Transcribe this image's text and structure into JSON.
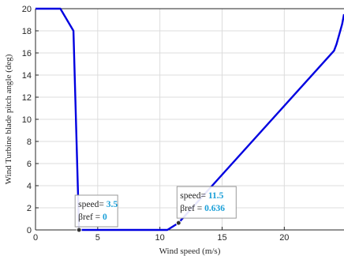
{
  "chart_data": {
    "type": "line",
    "xlabel": "Wind speed (m/s)",
    "ylabel": "Wind Turbine blade pitch angle (deg)",
    "xlim": [
      0,
      24.8
    ],
    "ylim": [
      0,
      20
    ],
    "xticks": [
      0,
      5,
      10,
      15,
      20
    ],
    "yticks": [
      0,
      2,
      4,
      6,
      8,
      10,
      12,
      14,
      16,
      18,
      20
    ],
    "grid": true,
    "line_color": "#0000e0",
    "series": [
      {
        "x": [
          0,
          2.0,
          3.05,
          3.25,
          3.5,
          10.6,
          11.5,
          24.0,
          24.2,
          24.45,
          24.65,
          24.8
        ],
        "y": [
          20,
          20,
          18.0,
          10.0,
          0,
          0,
          0.636,
          16.2,
          16.8,
          17.8,
          18.6,
          19.5
        ]
      }
    ],
    "datatips": [
      {
        "speed_label": "speed= ",
        "speed": "3.5",
        "bref_label": "βref = ",
        "bref": "0",
        "x": 3.5,
        "y": 0
      },
      {
        "speed_label": "speed= ",
        "speed": "11.5",
        "bref_label": "βref = ",
        "bref": "0.636",
        "x": 11.5,
        "y": 0.636
      }
    ]
  }
}
